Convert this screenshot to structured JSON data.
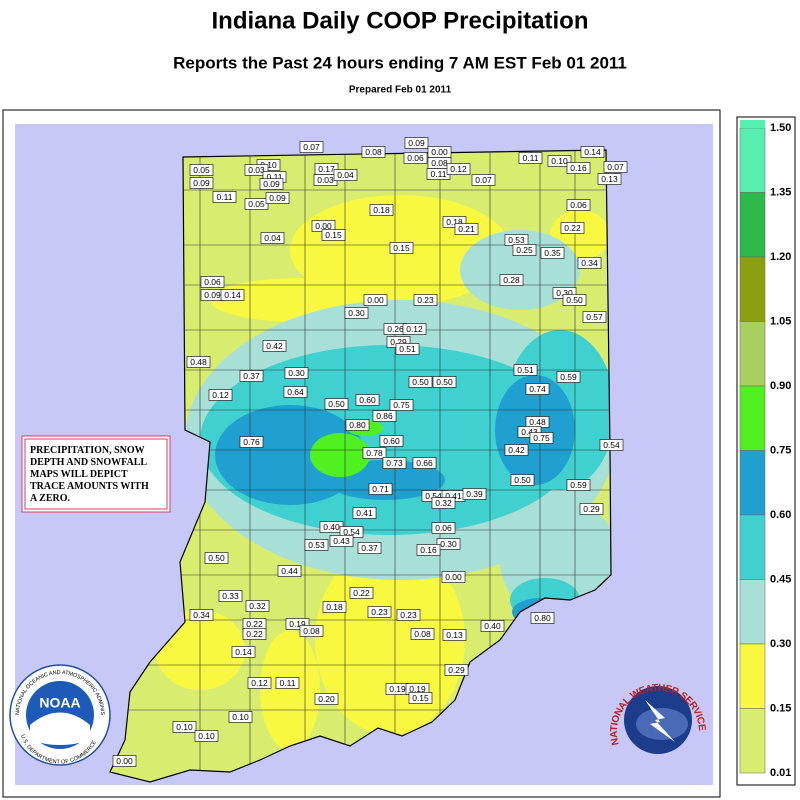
{
  "header": {
    "title": "Indiana Daily COOP Precipitation",
    "subtitle": "Reports the Past 24 hours ending 7 AM EST Feb 01  2011",
    "prepared": "Prepared Feb 01 2011"
  },
  "note": [
    "PRECIPITATION, SNOW",
    "DEPTH AND SNOWFALL",
    "MAPS WILL DEPICT",
    "TRACE AMOUNTS WITH",
    "A ZERO."
  ],
  "legend": {
    "labels": [
      "1.50",
      "1.35",
      "1.20",
      "1.05",
      "0.90",
      "0.75",
      "0.60",
      "0.45",
      "0.30",
      "0.15",
      "0.01"
    ],
    "colors": [
      "#55f0b0",
      "#2db84a",
      "#8aa010",
      "#a8d060",
      "#50f020",
      "#20a0d0",
      "#40d0d0",
      "#a8e0d8",
      "#f8f840",
      "#d8ec70"
    ]
  },
  "stations": [
    "0.07",
    "0.08",
    "0.09",
    "0.06",
    "0.00",
    "0.08",
    "0.11",
    "0.12",
    "0.07",
    "0.11",
    "0.10",
    "0.16",
    "0.14",
    "0.07",
    "0.13",
    "0.05",
    "0.09",
    "0.10",
    "0.03",
    "0.11",
    "0.09",
    "0.11",
    "0.05",
    "0.09",
    "0.17",
    "0.03",
    "0.04",
    "0.18",
    "0.00",
    "0.15",
    "0.04",
    "0.18",
    "0.21",
    "0.06",
    "0.22",
    "0.15",
    "0.53",
    "0.25",
    "0.35",
    "0.34",
    "0.28",
    "0.06",
    "0.09",
    "0.14",
    "0.00",
    "0.30",
    "0.23",
    "0.30",
    "0.50",
    "0.57",
    "0.26",
    "0.12",
    "0.29",
    "0.51",
    "0.42",
    "0.48",
    "0.37",
    "0.30",
    "0.51",
    "0.59",
    "0.12",
    "0.64",
    "0.50",
    "0.50",
    "0.74",
    "0.50",
    "0.60",
    "0.75",
    "0.86",
    "0.80",
    "0.48",
    "0.43",
    "0.75",
    "0.42",
    "0.54",
    "0.76",
    "0.60",
    "0.78",
    "0.73",
    "0.66",
    "0.50",
    "0.59",
    "0.71",
    "0.54",
    "0.41",
    "0.39",
    "0.32",
    "0.41",
    "0.29",
    "0.40",
    "0.54",
    "0.43",
    "0.53",
    "0.37",
    "0.06",
    "0.30",
    "0.16",
    "0.50",
    "0.44",
    "0.00",
    "0.22",
    "0.18",
    "0.23",
    "0.33",
    "0.32",
    "0.34",
    "0.22",
    "0.22",
    "0.19",
    "0.08",
    "0.23",
    "0.80",
    "0.40",
    "0.08",
    "0.13",
    "0.14",
    "0.29",
    "0.12",
    "0.11",
    "0.19",
    "0.19",
    "0.15",
    "0.20",
    "0.10",
    "0.10",
    "0.10",
    "0.00"
  ],
  "logos": {
    "noaa": "NOAA",
    "noaa_ring": "NATIONAL OCEANIC AND ATMOSPHERIC ADMINISTRATION",
    "noaa_dept": "U.S. DEPARTMENT OF COMMERCE",
    "nws_ring": "NATIONAL WEATHER SERVICE"
  }
}
